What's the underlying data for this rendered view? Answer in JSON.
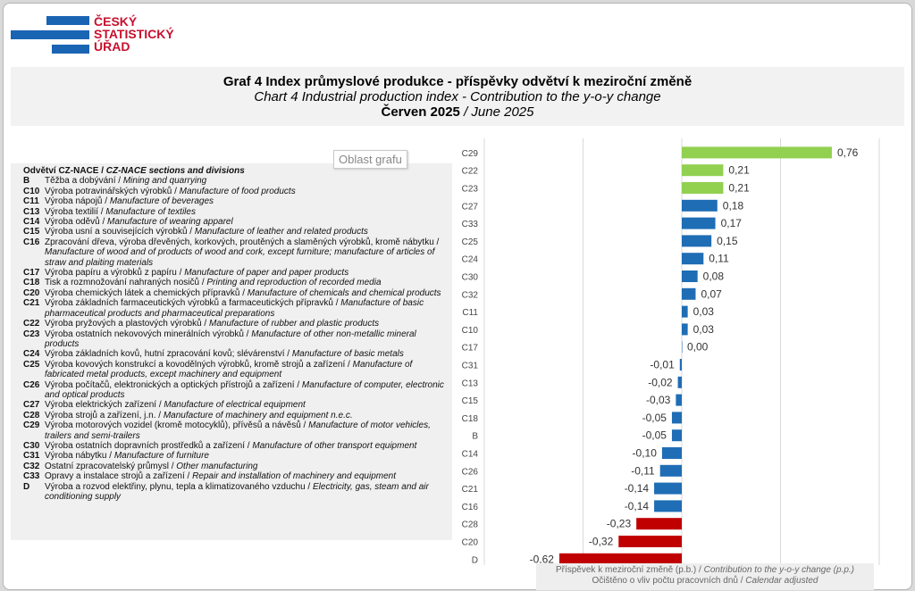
{
  "logo": {
    "lines": [
      "ČESKÝ",
      "STATISTICKÝ",
      "ÚŘAD"
    ],
    "color": "#c8102e",
    "bar_color": "#1a64b4"
  },
  "title": {
    "cz": "Graf 4 Index průmyslové  produkce - příspěvky  odvětví  k meziroční  změně",
    "en": "Chart 4 Industrial production index - Contribution to the y-o-y change",
    "period_cz": "Červen 2025",
    "period_en": " / June 2025"
  },
  "tooltip": "Oblast grafu",
  "legend": {
    "header_cz": "Odvětví CZ-NACE / ",
    "header_en": "CZ-NACE sections and divisions",
    "items": [
      {
        "code": "B",
        "cz": "Těžba a dobývání / ",
        "en": "Mining and quarrying"
      },
      {
        "code": "C10",
        "cz": "Výroba potravinářských výrobků / ",
        "en": "Manufacture of food products"
      },
      {
        "code": "C11",
        "cz": "Výroba nápojů / ",
        "en": "Manufacture of beverages"
      },
      {
        "code": "C13",
        "cz": "Výroba textilií / ",
        "en": "Manufacture of textiles"
      },
      {
        "code": "C14",
        "cz": "Výroba oděvů / ",
        "en": "Manufacture of wearing apparel"
      },
      {
        "code": "C15",
        "cz": "Výroba usní a souvisejících výrobků / ",
        "en": "Manufacture of leather and related products"
      },
      {
        "code": "C16",
        "cz": "Zpracování dřeva, výroba dřevěných, korkových, proutěných a slaměných výrobků, kromě nábytku / ",
        "en": "Manufacture of wood and of products of wood and cork, except furniture; manufacture of articles of straw and plaiting materials"
      },
      {
        "code": "C17",
        "cz": "Výroba papíru a výrobků z papíru / ",
        "en": "Manufacture of paper and paper products"
      },
      {
        "code": "C18",
        "cz": "Tisk a rozmnožování nahraných nosičů / ",
        "en": "Printing and reproduction of recorded media"
      },
      {
        "code": "C20",
        "cz": "Výroba chemických látek a chemických přípravků / ",
        "en": "Manufacture of chemicals and chemical products"
      },
      {
        "code": "C21",
        "cz": "Výroba základních farmaceutických výrobků a farmaceutických přípravků / ",
        "en": "Manufacture of basic pharmaceutical products and pharmaceutical preparations"
      },
      {
        "code": "C22",
        "cz": "Výroba pryžových a plastových výrobků / ",
        "en": "Manufacture of rubber and plastic products"
      },
      {
        "code": "C23",
        "cz": "Výroba ostatních nekovových minerálních výrobků / ",
        "en": "Manufacture of other non-metallic mineral products"
      },
      {
        "code": "C24",
        "cz": "Výroba základních kovů, hutní zpracování kovů; slévárenství / ",
        "en": "Manufacture of basic metals"
      },
      {
        "code": "C25",
        "cz": "Výroba kovových konstrukcí a kovodělných výrobků, kromě strojů a zařízení / ",
        "en": "Manufacture of fabricated metal products, except machinery and equipment"
      },
      {
        "code": "C26",
        "cz": "Výroba počítačů, elektronických a optických přístrojů a zařízení / ",
        "en": "Manufacture of computer, electronic and optical products"
      },
      {
        "code": "C27",
        "cz": "Výroba elektrických zařízení / ",
        "en": "Manufacture of electrical equipment"
      },
      {
        "code": "C28",
        "cz": "Výroba strojů a zařízení, j.n. / ",
        "en": "Manufacture of machinery and equipment n.e.c."
      },
      {
        "code": "C29",
        "cz": "Výroba motorových vozidel (kromě motocyklů), přívěsů a návěsů / ",
        "en": "Manufacture of motor vehicles, trailers and semi-trailers"
      },
      {
        "code": "C30",
        "cz": "Výroba ostatních dopravních prostředků a zařízení / ",
        "en": "Manufacture of other transport equipment"
      },
      {
        "code": "C31",
        "cz": "Výroba nábytku / ",
        "en": "Manufacture of furniture"
      },
      {
        "code": "C32",
        "cz": "Ostatní zpracovatelský průmysl / ",
        "en": "Other manufacturing"
      },
      {
        "code": "C33",
        "cz": "Opravy a instalace strojů a zařízení / ",
        "en": "Repair and installation of machinery and equipment"
      },
      {
        "code": "D",
        "cz": "Výroba a rozvod elektřiny, plynu, tepla a klimatizovaného vzduchu / ",
        "en": "Electricity, gas, steam and air conditioning supply"
      }
    ]
  },
  "axis_note": {
    "line1_cz": "Příspěvek  k meziroční  změně (p.b.) / ",
    "line1_en": "Contribution to the y-o-y change (p.p.)",
    "line2_cz": "Očištěno o vliv počtu pracovních dnů / ",
    "line2_en": "Calendar adjusted"
  },
  "chart_data": {
    "type": "bar",
    "orientation": "horizontal",
    "categories": [
      "C29",
      "C22",
      "C23",
      "C27",
      "C33",
      "C25",
      "C24",
      "C30",
      "C32",
      "C11",
      "C10",
      "C17",
      "C31",
      "C13",
      "C15",
      "C18",
      "B",
      "C14",
      "C26",
      "C21",
      "C16",
      "C28",
      "C20",
      "D"
    ],
    "values": [
      0.76,
      0.21,
      0.21,
      0.18,
      0.17,
      0.15,
      0.11,
      0.08,
      0.07,
      0.03,
      0.03,
      0.0,
      -0.01,
      -0.02,
      -0.03,
      -0.05,
      -0.05,
      -0.1,
      -0.11,
      -0.14,
      -0.14,
      -0.23,
      -0.32,
      -0.62
    ],
    "value_labels": [
      "0,76",
      "0,21",
      "0,21",
      "0,18",
      "0,17",
      "0,15",
      "0,11",
      "0,08",
      "0,07",
      "0,03",
      "0,03",
      "0,00",
      "-0,01",
      "-0,02",
      "-0,03",
      "-0,05",
      "-0,05",
      "-0,10",
      "-0,11",
      "-0,14",
      "-0,14",
      "-0,23",
      "-0,32",
      "-0,62"
    ],
    "colors": [
      "#92d050",
      "#92d050",
      "#92d050",
      "#1f6db5",
      "#1f6db5",
      "#1f6db5",
      "#1f6db5",
      "#1f6db5",
      "#1f6db5",
      "#1f6db5",
      "#1f6db5",
      "#1f6db5",
      "#1f6db5",
      "#1f6db5",
      "#1f6db5",
      "#1f6db5",
      "#1f6db5",
      "#1f6db5",
      "#1f6db5",
      "#1f6db5",
      "#1f6db5",
      "#c00000",
      "#c00000",
      "#c00000"
    ],
    "xlim": [
      -1,
      1
    ],
    "grid": true,
    "xlabel": "Příspěvek  k meziroční  změně (p.b.) / Contribution to the y-o-y change (p.p.)"
  }
}
